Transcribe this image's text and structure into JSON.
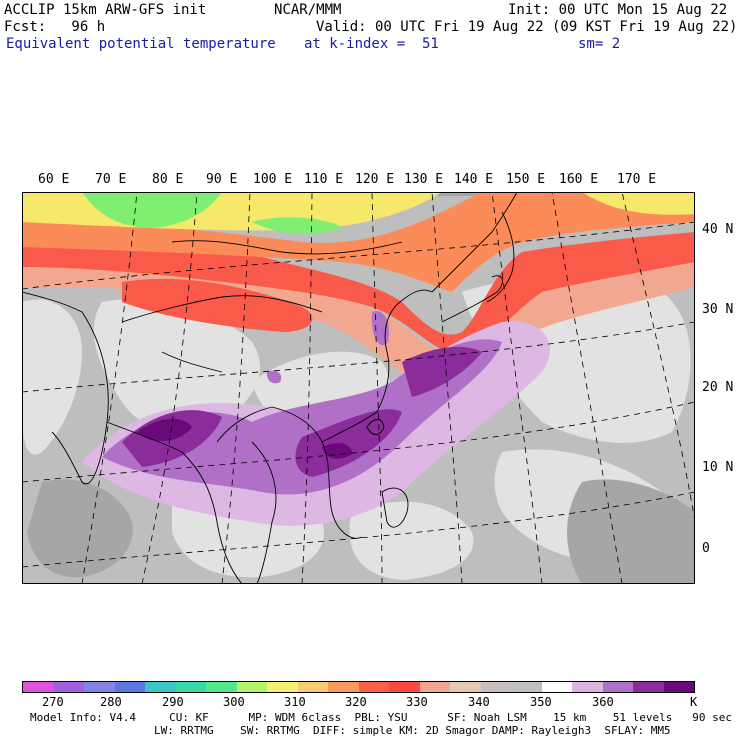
{
  "header": {
    "model": "ACCLIP 15km ARW-GFS init",
    "center": "NCAR/MMM",
    "init": "Init: 00 UTC Mon 15 Aug 22",
    "fcst": "Fcst:   96 h",
    "valid": "Valid: 00 UTC Fri 19 Aug 22 (09 KST Fri 19 Aug 22)",
    "field": "Equivalent potential temperature",
    "level": "at k-index =  51",
    "smooth": "sm= 2"
  },
  "map": {
    "lon_labels": [
      "60 E",
      "70 E",
      "80 E",
      "90 E",
      "100 E",
      "110 E",
      "120 E",
      "130 E",
      "140 E",
      "150 E",
      "160 E",
      "170 E"
    ],
    "lat_labels": [
      "40 N",
      "30 N",
      "20 N",
      "10 N",
      "0"
    ],
    "colors": {
      "ocean_gray": "#bebebe",
      "light_gray": "#e2e2e2",
      "dark_gray": "#a6a6a6",
      "purple_light": "#dcb8e2",
      "purple_mid": "#b070c8",
      "purple_dark": "#8a2c9a",
      "purple_deep": "#6a0a7a",
      "red": "#fa5a4a",
      "salmon": "#f2a890",
      "orange": "#fb8c5a",
      "yellow": "#f6e86a",
      "green": "#80ee70"
    }
  },
  "colorbar": {
    "colors": [
      "#dd55dd",
      "#a060dc",
      "#8484e4",
      "#5a78e0",
      "#3ac6c6",
      "#38d8a8",
      "#52e88c",
      "#b6f46c",
      "#f6f070",
      "#f8cc70",
      "#fa9a5c",
      "#fa6048",
      "#fa4a44",
      "#f0a690",
      "#e6c8b4",
      "#c8c0be",
      "#c0c0c0",
      "#ffffff",
      "#dcb4e0",
      "#b070c8",
      "#8a2c9a",
      "#6a0a7a"
    ],
    "ticks": [
      "270",
      "280",
      "290",
      "300",
      "310",
      "320",
      "330",
      "340",
      "350",
      "360",
      "K"
    ]
  },
  "footer": {
    "line1": "Model Info: V4.4     CU: KF      MP: WDM 6class  PBL: YSU      SF: Noah LSM    15 km    51 levels   90 sec",
    "line2": "LW: RRTMG    SW: RRTMG  DIFF: simple KM: 2D Smagor DAMP: Rayleigh3  SFLAY: MM5"
  }
}
